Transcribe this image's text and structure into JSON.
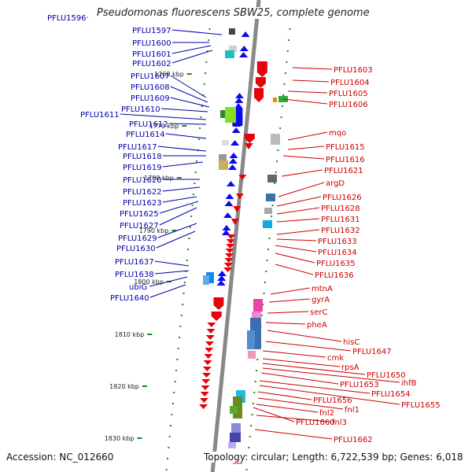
{
  "title": "Pseudomonas fluorescens SBW25, complete genome",
  "footer": {
    "accession": "Accession: NC_012660",
    "topology": "Topology: circular; Length: 6,722,539 bp; Genes: 6,018"
  },
  "colors": {
    "forward_gene": "#e8000a",
    "reverse_gene": "#0a0af0",
    "left_label": "#0000aa",
    "right_label": "#cc0000",
    "backbone": "#888888",
    "gc_tick": "#1a8a1a"
  },
  "scale_ticks": [
    "1760 kbp",
    "1770 kbp",
    "1780 kbp",
    "1790 kbp",
    "1800 kbp",
    "1810 kbp",
    "1820 kbp",
    "1830 kbp"
  ],
  "left_labels": [
    "PFLU1596",
    "PFLU1597",
    "PFLU1600",
    "PFLU1601",
    "PFLU1602",
    "PFLU1607",
    "PFLU1608",
    "PFLU1609",
    "PFLU1610",
    "PFLU1611",
    "PFLU1612",
    "PFLU1614",
    "PFLU1617",
    "PFLU1618",
    "PFLU1619",
    "PFLU1620",
    "PFLU1622",
    "PFLU1623",
    "PFLU1625",
    "PFLU1627",
    "PFLU1629",
    "PFLU1630",
    "PFLU1637",
    "PFLU1638",
    "ubiG",
    "PFLU1640"
  ],
  "right_labels": [
    "PFLU1603",
    "PFLU1604",
    "PFLU1605",
    "PFLU1606",
    "mqo",
    "PFLU1615",
    "PFLU1616",
    "PFLU1621",
    "argD",
    "PFLU1626",
    "PFLU1628",
    "PFLU1631",
    "PFLU1632",
    "PFLU1633",
    "PFLU1634",
    "PFLU1635",
    "PFLU1636",
    "mtnA",
    "gyrA",
    "serC",
    "pheA",
    "hisC",
    "PFLU1647",
    "cmk",
    "rpsA",
    "PFLU1650",
    "ihfB",
    "PFLU1653",
    "PFLU1654",
    "PFLU1655",
    "PFLU1656",
    "fnl1",
    "fnl2",
    "PFLU1660",
    "fnl3",
    "PFLU1662"
  ]
}
